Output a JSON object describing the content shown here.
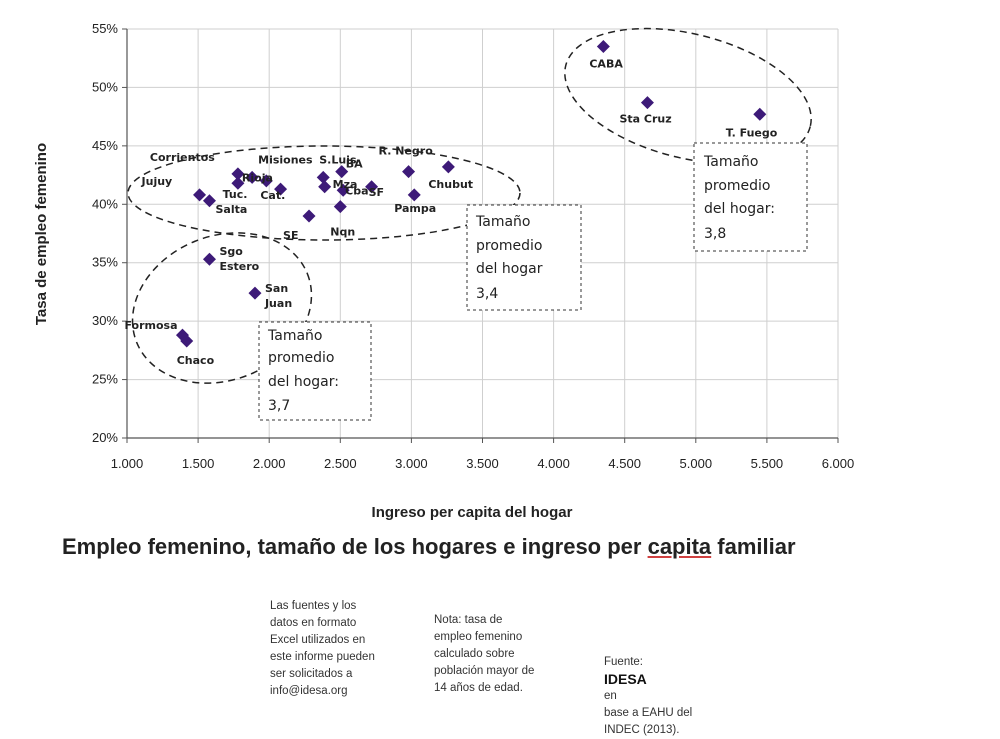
{
  "chart_data": {
    "type": "scatter",
    "title": "Empleo femenino, tamaño de los hogares e ingreso per capita familiar",
    "xlabel": "Ingreso per capita del hogar",
    "ylabel": "Tasa de empleo femenino",
    "xlim": [
      1000,
      6000
    ],
    "ylim": [
      20,
      55
    ],
    "x_ticks": [
      1000,
      1500,
      2000,
      2500,
      3000,
      3500,
      4000,
      4500,
      5000,
      5500,
      6000
    ],
    "x_tick_labels": [
      "1.000",
      "1.500",
      "2.000",
      "2.500",
      "3.000",
      "3.500",
      "4.000",
      "4.500",
      "5.000",
      "5.500",
      "6.000"
    ],
    "y_ticks": [
      20,
      25,
      30,
      35,
      40,
      45,
      50,
      55
    ],
    "y_tick_labels": [
      "20%",
      "25%",
      "30%",
      "35%",
      "40%",
      "45%",
      "50%",
      "55%"
    ],
    "grid": true,
    "marker_color": "#3d1a78",
    "points": [
      {
        "label": "CABA",
        "x": 4350,
        "y": 53.5
      },
      {
        "label": "Sta Cruz",
        "x": 4660,
        "y": 48.7
      },
      {
        "label": "T. Fuego",
        "x": 5450,
        "y": 47.7
      },
      {
        "label": "Corrientos",
        "x": 1780,
        "y": 42.6
      },
      {
        "label": "Misiones",
        "x": 1880,
        "y": 42.3
      },
      {
        "label": "Cat.",
        "x": 1980,
        "y": 42.0
      },
      {
        "label": "Jujuy",
        "x": 1510,
        "y": 40.8
      },
      {
        "label": "Rioja",
        "x": 1780,
        "y": 41.8
      },
      {
        "label": "Salta",
        "x": 1580,
        "y": 40.3
      },
      {
        "label": "Tuc.",
        "x": 2080,
        "y": 41.3
      },
      {
        "label": "SE",
        "x": 2280,
        "y": 39.0
      },
      {
        "label": "S.Luis",
        "x": 2380,
        "y": 42.3
      },
      {
        "label": "Mza",
        "x": 2390,
        "y": 41.5
      },
      {
        "label": "BA",
        "x": 2510,
        "y": 42.8
      },
      {
        "label": "Cba",
        "x": 2520,
        "y": 41.2
      },
      {
        "label": "Nqn",
        "x": 2500,
        "y": 39.8
      },
      {
        "label": "SF",
        "x": 2720,
        "y": 41.5
      },
      {
        "label": "R. Negro",
        "x": 2980,
        "y": 42.8
      },
      {
        "label": "Chubut",
        "x": 3260,
        "y": 43.2
      },
      {
        "label": "Pampa",
        "x": 3020,
        "y": 40.8
      },
      {
        "label": "Sgo Estero",
        "x": 1580,
        "y": 35.3
      },
      {
        "label": "San Juan",
        "x": 1900,
        "y": 32.4
      },
      {
        "label": "Formosa",
        "x": 1390,
        "y": 28.8
      },
      {
        "label": "Chaco",
        "x": 1420,
        "y": 28.3
      }
    ],
    "annotations": [
      {
        "text": [
          "Tamaño",
          "promedio",
          "del hogar:",
          "3,7"
        ]
      },
      {
        "text": [
          "Tamaño",
          "promedio",
          "del hogar",
          "3,4"
        ]
      },
      {
        "text": [
          "Tamaño",
          "promedio",
          "del hogar:",
          "3,8"
        ]
      }
    ]
  },
  "title_parts": {
    "before": "Empleo femenino, tamaño de los hogares e ingreso per ",
    "underlined": "capita",
    "after": " familiar"
  },
  "notes": {
    "note1": [
      "Las fuentes y los",
      "datos en formato",
      "Excel utilizados en",
      "este informe pueden",
      "ser solicitados a",
      "info@idesa.org"
    ],
    "note2": [
      "Nota: tasa de",
      "empleo femenino",
      "calculado sobre",
      "población mayor de",
      "14 años de edad."
    ],
    "note3_prefix": "Fuente: ",
    "note3_brand": "IDESA",
    "note3_suffix": " en",
    "note3_rest": [
      "base a EAHU del",
      "INDEC (2013)."
    ]
  }
}
